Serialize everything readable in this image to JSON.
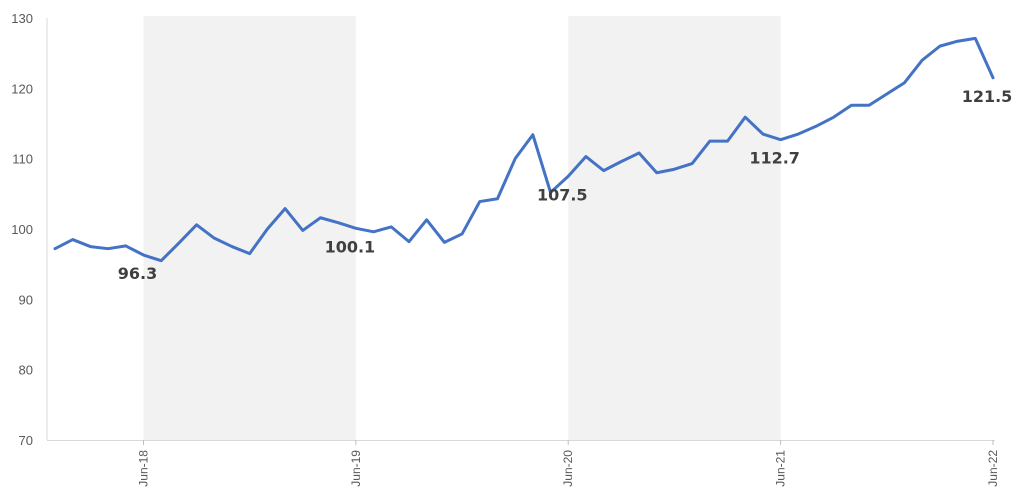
{
  "chart_data": {
    "type": "line",
    "title": "",
    "xlabel": "",
    "ylabel": "",
    "ylim": [
      70,
      130
    ],
    "yticks": [
      70,
      80,
      90,
      100,
      110,
      120,
      130
    ],
    "grid": false,
    "legend": "none",
    "line_color": "#4472C4",
    "band_color": "#F2F2F2",
    "x_tick_labels": [
      "Jun-18",
      "Jun-19",
      "Jun-20",
      "Jun-21",
      "Jun-22"
    ],
    "shaded_periods": [
      {
        "start": "2018-06",
        "end": "2019-06"
      },
      {
        "start": "2020-06",
        "end": "2021-06"
      }
    ],
    "series": [
      {
        "x": [
          "2018-01",
          "2018-02",
          "2018-03",
          "2018-04",
          "2018-05",
          "2018-06",
          "2018-07",
          "2018-08",
          "2018-09",
          "2018-10",
          "2018-11",
          "2018-12",
          "2019-01",
          "2019-02",
          "2019-03",
          "2019-04",
          "2019-05",
          "2019-06",
          "2019-07",
          "2019-08",
          "2019-09",
          "2019-10",
          "2019-11",
          "2019-12",
          "2020-01",
          "2020-02",
          "2020-03",
          "2020-04",
          "2020-05",
          "2020-06",
          "2020-07",
          "2020-08",
          "2020-09",
          "2020-10",
          "2020-11",
          "2020-12",
          "2021-01",
          "2021-02",
          "2021-03",
          "2021-04",
          "2021-05",
          "2021-06",
          "2021-07",
          "2021-08",
          "2021-09",
          "2021-10",
          "2021-11",
          "2021-12",
          "2022-01",
          "2022-02",
          "2022-03",
          "2022-04",
          "2022-05",
          "2022-06"
        ],
        "values": [
          97.2,
          98.5,
          97.5,
          97.2,
          97.6,
          96.3,
          95.5,
          98.0,
          100.6,
          98.7,
          97.5,
          96.5,
          100.0,
          102.9,
          99.8,
          101.6,
          100.9,
          100.1,
          99.6,
          100.3,
          98.2,
          101.3,
          98.1,
          99.3,
          103.9,
          104.3,
          110.0,
          113.4,
          105.2,
          107.5,
          110.3,
          108.3,
          109.6,
          110.8,
          108.0,
          108.5,
          109.3,
          112.5,
          112.5,
          115.9,
          113.5,
          112.7,
          113.5,
          114.6,
          115.9,
          117.6,
          117.6,
          119.2,
          120.8,
          124.0,
          126.0,
          126.7,
          127.1,
          121.5
        ]
      }
    ],
    "data_labels": [
      {
        "x": "2018-06",
        "text": "96.3"
      },
      {
        "x": "2019-06",
        "text": "100.1"
      },
      {
        "x": "2020-06",
        "text": "107.5"
      },
      {
        "x": "2021-06",
        "text": "112.7"
      },
      {
        "x": "2022-06",
        "text": "121.5"
      }
    ]
  }
}
